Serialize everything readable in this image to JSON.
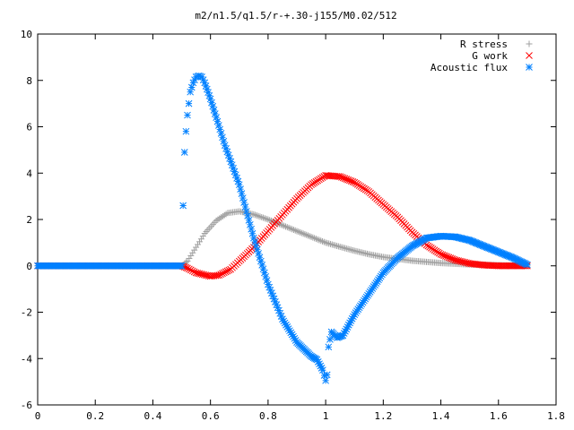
{
  "chart_data": {
    "type": "scatter",
    "title": "m2/n1.5/q1.5/r-+.30-j155/M0.02/512",
    "xlabel": "",
    "ylabel": "",
    "xlim": [
      0,
      1.8
    ],
    "ylim": [
      -6,
      10
    ],
    "x_ticks": [
      "0",
      "0.2",
      "0.4",
      "0.6",
      "0.8",
      "1",
      "1.2",
      "1.4",
      "1.6",
      "1.8"
    ],
    "y_ticks": [
      "-6",
      "-4",
      "-2",
      "0",
      "2",
      "4",
      "6",
      "8",
      "10"
    ],
    "grid": false,
    "legend_position": "top-right",
    "series": [
      {
        "name": "R stress",
        "color": "#a0a0a0",
        "marker": "plus",
        "points": [
          [
            0.0,
            0.0
          ],
          [
            0.1,
            0.0
          ],
          [
            0.2,
            0.0
          ],
          [
            0.3,
            0.0
          ],
          [
            0.4,
            0.0
          ],
          [
            0.5,
            0.0
          ],
          [
            0.52,
            0.2
          ],
          [
            0.55,
            0.8
          ],
          [
            0.58,
            1.4
          ],
          [
            0.62,
            1.95
          ],
          [
            0.66,
            2.28
          ],
          [
            0.7,
            2.35
          ],
          [
            0.75,
            2.22
          ],
          [
            0.8,
            2.0
          ],
          [
            0.85,
            1.75
          ],
          [
            0.9,
            1.5
          ],
          [
            0.95,
            1.25
          ],
          [
            1.0,
            1.0
          ],
          [
            1.05,
            0.82
          ],
          [
            1.1,
            0.65
          ],
          [
            1.15,
            0.5
          ],
          [
            1.2,
            0.38
          ],
          [
            1.3,
            0.22
          ],
          [
            1.4,
            0.12
          ],
          [
            1.5,
            0.06
          ],
          [
            1.6,
            0.03
          ],
          [
            1.7,
            0.0
          ]
        ]
      },
      {
        "name": "G work",
        "color": "#ff0000",
        "marker": "cross",
        "points": [
          [
            0.0,
            0.0
          ],
          [
            0.1,
            0.0
          ],
          [
            0.2,
            0.0
          ],
          [
            0.3,
            0.0
          ],
          [
            0.4,
            0.0
          ],
          [
            0.5,
            0.0
          ],
          [
            0.52,
            -0.1
          ],
          [
            0.55,
            -0.3
          ],
          [
            0.6,
            -0.45
          ],
          [
            0.63,
            -0.4
          ],
          [
            0.67,
            -0.15
          ],
          [
            0.7,
            0.2
          ],
          [
            0.75,
            0.8
          ],
          [
            0.8,
            1.5
          ],
          [
            0.85,
            2.2
          ],
          [
            0.9,
            2.9
          ],
          [
            0.95,
            3.5
          ],
          [
            1.0,
            3.9
          ],
          [
            1.05,
            3.85
          ],
          [
            1.1,
            3.6
          ],
          [
            1.15,
            3.2
          ],
          [
            1.2,
            2.65
          ],
          [
            1.25,
            2.1
          ],
          [
            1.3,
            1.45
          ],
          [
            1.35,
            0.9
          ],
          [
            1.4,
            0.5
          ],
          [
            1.45,
            0.25
          ],
          [
            1.5,
            0.1
          ],
          [
            1.55,
            0.03
          ],
          [
            1.6,
            0.0
          ],
          [
            1.7,
            0.0
          ]
        ]
      },
      {
        "name": "Acoustic flux",
        "color": "#0080ff",
        "marker": "star",
        "points": [
          [
            0.0,
            0.0
          ],
          [
            0.1,
            0.0
          ],
          [
            0.2,
            0.0
          ],
          [
            0.3,
            0.0
          ],
          [
            0.4,
            0.0
          ],
          [
            0.5,
            0.0
          ],
          [
            0.505,
            2.6
          ],
          [
            0.51,
            4.9
          ],
          [
            0.515,
            5.8
          ],
          [
            0.52,
            6.5
          ],
          [
            0.525,
            7.0
          ],
          [
            0.53,
            7.5
          ],
          [
            0.54,
            7.9
          ],
          [
            0.55,
            8.15
          ],
          [
            0.56,
            8.2
          ],
          [
            0.57,
            8.15
          ],
          [
            0.58,
            7.9
          ],
          [
            0.6,
            7.2
          ],
          [
            0.62,
            6.4
          ],
          [
            0.65,
            5.2
          ],
          [
            0.7,
            3.5
          ],
          [
            0.75,
            1.2
          ],
          [
            0.8,
            -0.8
          ],
          [
            0.85,
            -2.3
          ],
          [
            0.9,
            -3.3
          ],
          [
            0.95,
            -3.9
          ],
          [
            0.97,
            -4.05
          ],
          [
            0.99,
            -4.5
          ],
          [
            1.0,
            -4.95
          ],
          [
            1.005,
            -4.7
          ],
          [
            1.01,
            -3.5
          ],
          [
            1.02,
            -2.85
          ],
          [
            1.04,
            -3.1
          ],
          [
            1.06,
            -3.0
          ],
          [
            1.1,
            -2.1
          ],
          [
            1.15,
            -1.2
          ],
          [
            1.2,
            -0.3
          ],
          [
            1.25,
            0.35
          ],
          [
            1.3,
            0.85
          ],
          [
            1.35,
            1.2
          ],
          [
            1.4,
            1.28
          ],
          [
            1.45,
            1.25
          ],
          [
            1.5,
            1.1
          ],
          [
            1.55,
            0.85
          ],
          [
            1.6,
            0.6
          ],
          [
            1.65,
            0.35
          ],
          [
            1.7,
            0.05
          ]
        ]
      }
    ]
  }
}
